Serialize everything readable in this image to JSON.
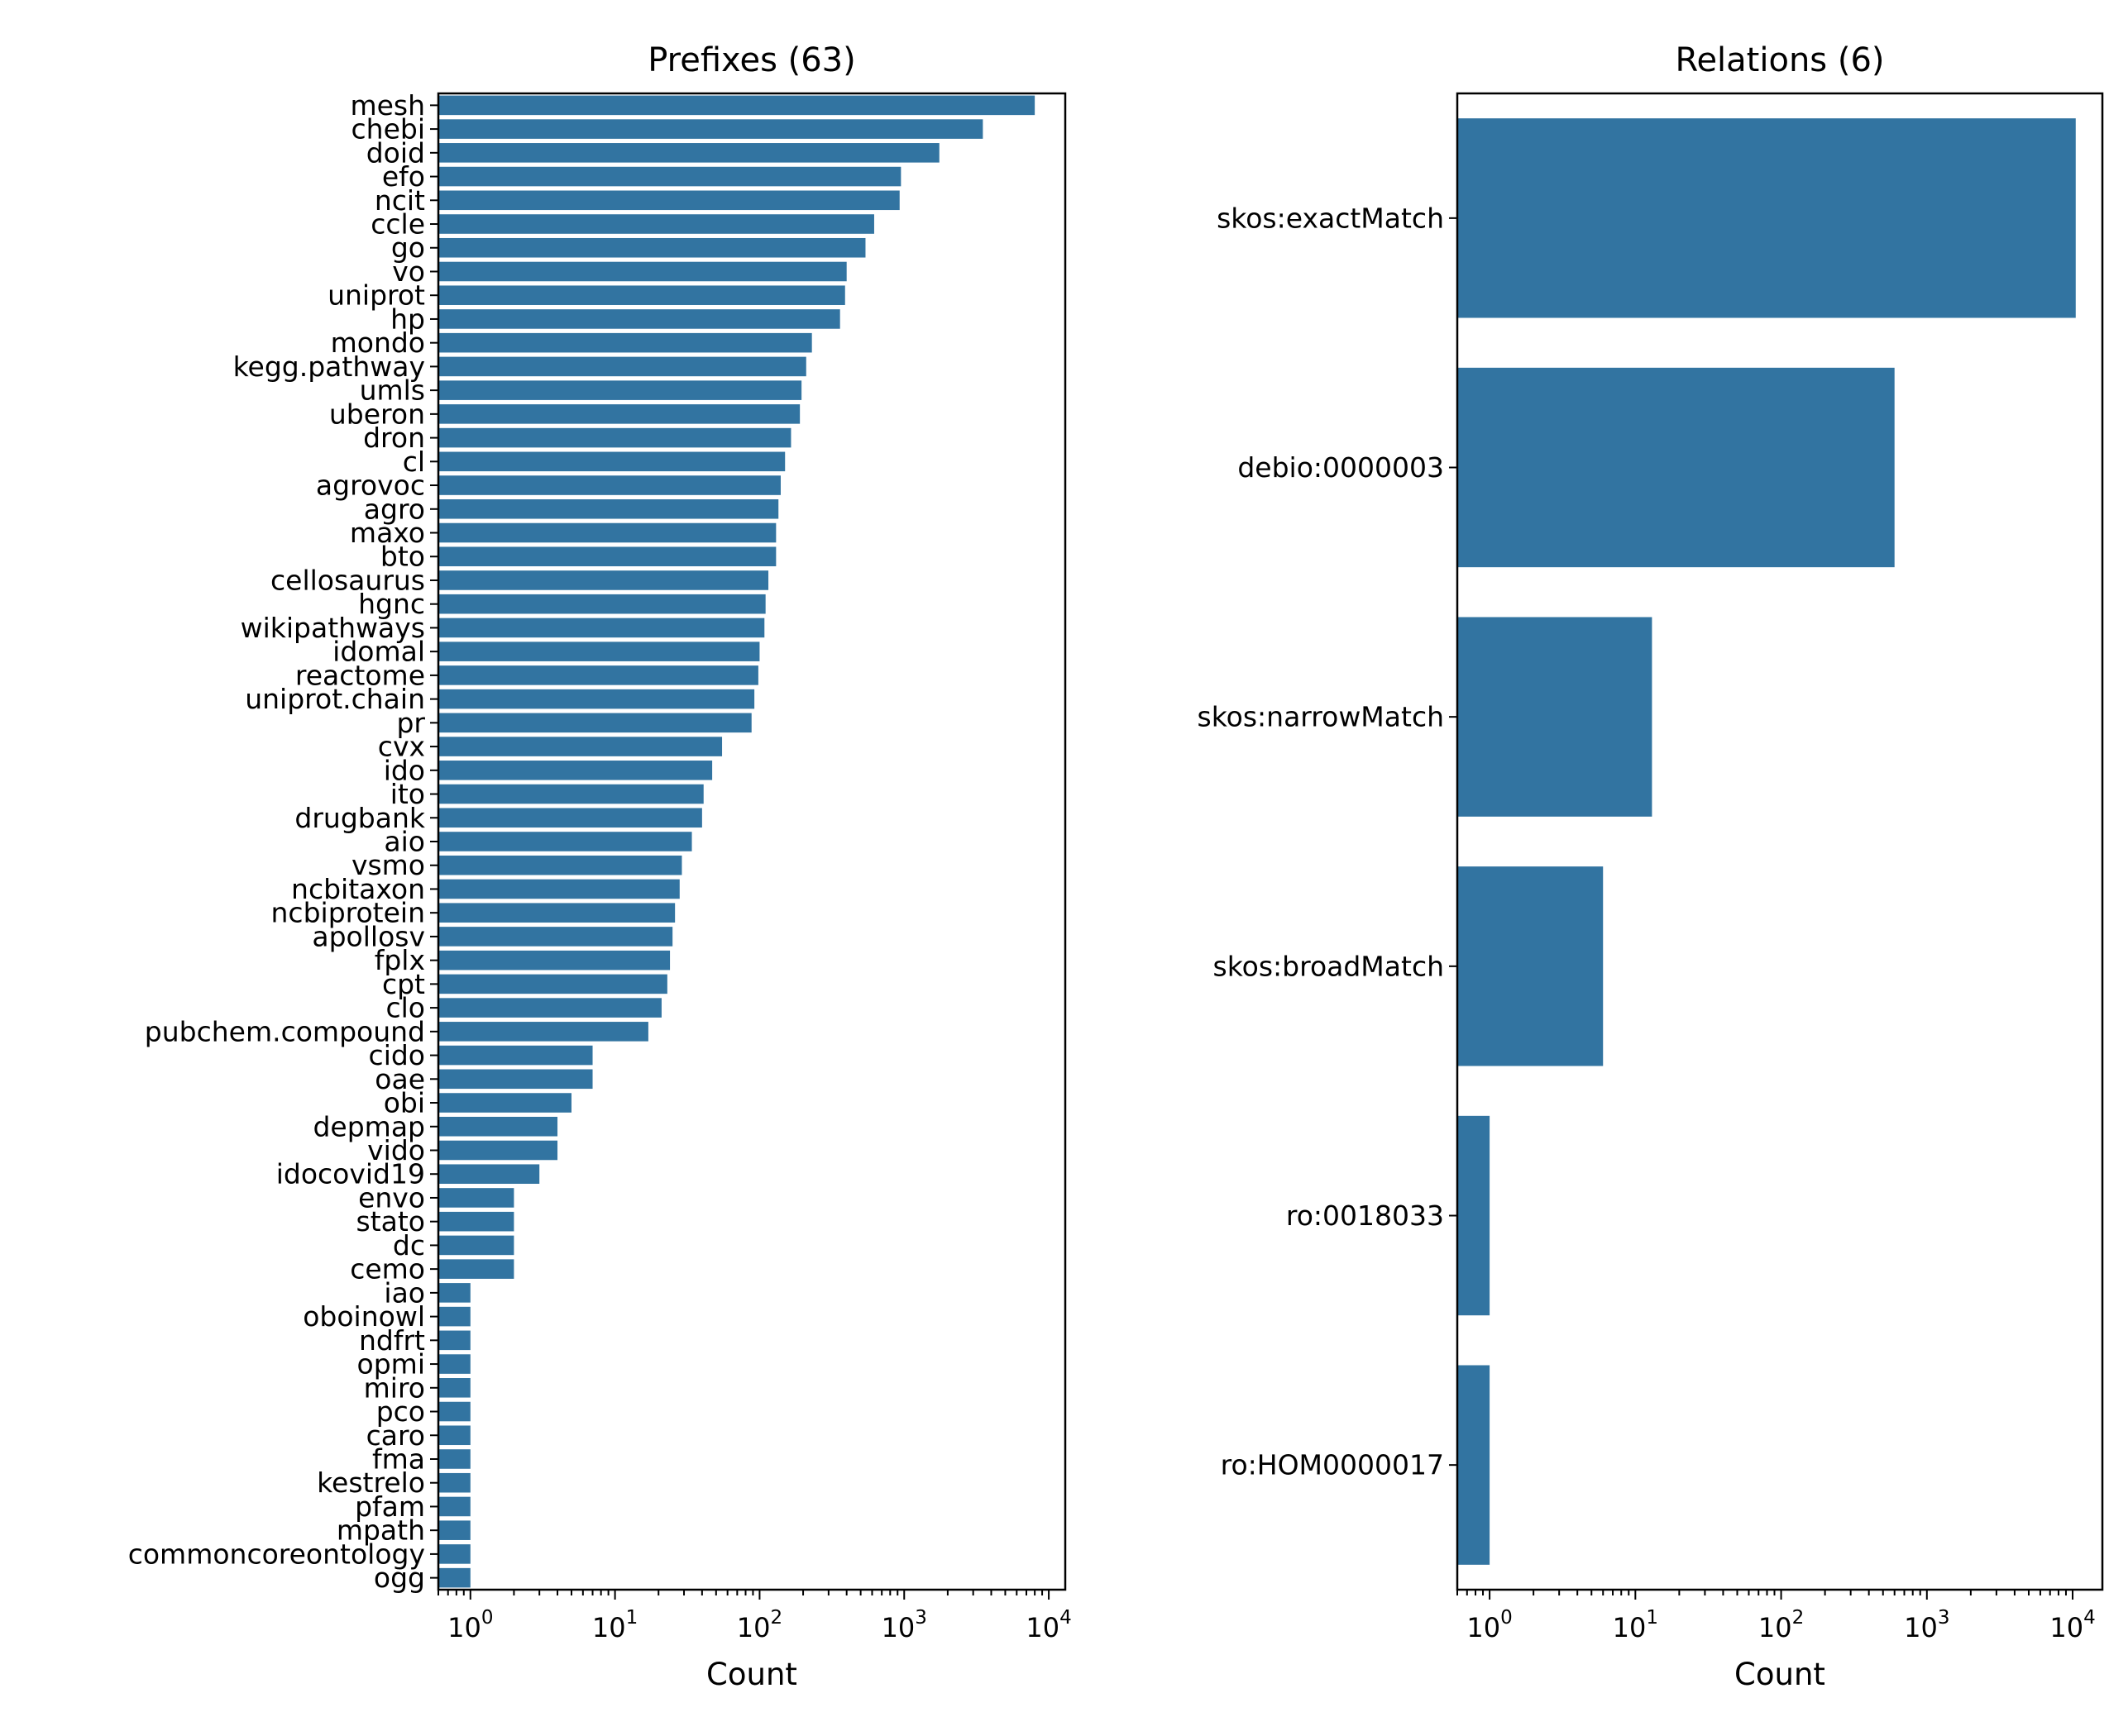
{
  "chart_data": [
    {
      "type": "bar",
      "orientation": "horizontal",
      "title": "Prefixes (63)",
      "xlabel": "Count",
      "ylabel": "",
      "xscale": "log",
      "xlim": [
        0.6,
        13000
      ],
      "grid": false,
      "color": "#3274a1",
      "xticks": [
        {
          "base": "10",
          "exp": "0"
        },
        {
          "base": "10",
          "exp": "1"
        },
        {
          "base": "10",
          "exp": "2"
        },
        {
          "base": "10",
          "exp": "3"
        },
        {
          "base": "10",
          "exp": "4"
        }
      ],
      "categories": [
        "mesh",
        "chebi",
        "doid",
        "efo",
        "ncit",
        "ccle",
        "go",
        "vo",
        "uniprot",
        "hp",
        "mondo",
        "kegg.pathway",
        "umls",
        "uberon",
        "dron",
        "cl",
        "agrovoc",
        "agro",
        "maxo",
        "bto",
        "cellosaurus",
        "hgnc",
        "wikipathways",
        "idomal",
        "reactome",
        "uniprot.chain",
        "pr",
        "cvx",
        "ido",
        "ito",
        "drugbank",
        "aio",
        "vsmo",
        "ncbitaxon",
        "ncbiprotein",
        "apollosv",
        "fplx",
        "cpt",
        "clo",
        "pubchem.compound",
        "cido",
        "oae",
        "obi",
        "depmap",
        "vido",
        "idocovid19",
        "envo",
        "stato",
        "dc",
        "cemo",
        "iao",
        "oboinowl",
        "ndfrt",
        "opmi",
        "miro",
        "pco",
        "caro",
        "fma",
        "kestrelo",
        "pfam",
        "mpath",
        "commoncoreontology",
        "ogg"
      ],
      "values": [
        8000,
        3500,
        1750,
        950,
        930,
        620,
        540,
        400,
        390,
        360,
        230,
        210,
        195,
        190,
        165,
        150,
        140,
        135,
        130,
        130,
        115,
        110,
        108,
        100,
        98,
        92,
        88,
        55,
        47,
        41,
        40,
        34,
        29,
        28,
        26,
        25,
        24,
        23,
        21,
        17,
        7,
        7,
        5,
        4,
        4,
        3,
        2,
        2,
        2,
        2,
        1,
        1,
        1,
        1,
        1,
        1,
        1,
        1,
        1,
        1,
        1,
        1,
        1
      ]
    },
    {
      "type": "bar",
      "orientation": "horizontal",
      "title": "Relations (6)",
      "xlabel": "Count",
      "ylabel": "",
      "xscale": "log",
      "xlim": [
        0.6,
        16000
      ],
      "grid": false,
      "color": "#3274a1",
      "xticks": [
        {
          "base": "10",
          "exp": "0"
        },
        {
          "base": "10",
          "exp": "1"
        },
        {
          "base": "10",
          "exp": "2"
        },
        {
          "base": "10",
          "exp": "3"
        },
        {
          "base": "10",
          "exp": "4"
        }
      ],
      "categories": [
        "skos:exactMatch",
        "debio:0000003",
        "skos:narrowMatch",
        "skos:broadMatch",
        "ro:0018033",
        "ro:HOM0000017"
      ],
      "values": [
        10500,
        600,
        13,
        6,
        1,
        1
      ]
    }
  ]
}
